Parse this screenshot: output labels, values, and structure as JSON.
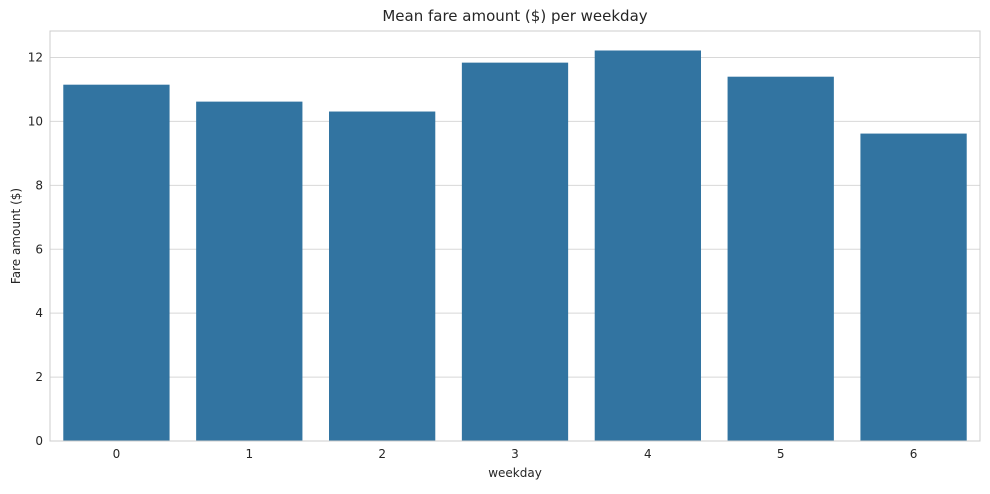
{
  "chart_data": {
    "type": "bar",
    "title": "Mean fare amount ($) per weekday",
    "xlabel": "weekday",
    "ylabel": "Fare amount ($)",
    "categories": [
      "0",
      "1",
      "2",
      "3",
      "4",
      "5",
      "6"
    ],
    "values": [
      11.15,
      10.62,
      10.31,
      11.84,
      12.22,
      11.4,
      9.62
    ],
    "ylim": [
      0,
      12.83
    ],
    "yticks": [
      0,
      2,
      4,
      6,
      8,
      10,
      12
    ],
    "grid": true,
    "legend": "none",
    "bar_color": "#3274a1",
    "grid_color": "#d8d8d8",
    "spine_color": "#cccccc"
  }
}
